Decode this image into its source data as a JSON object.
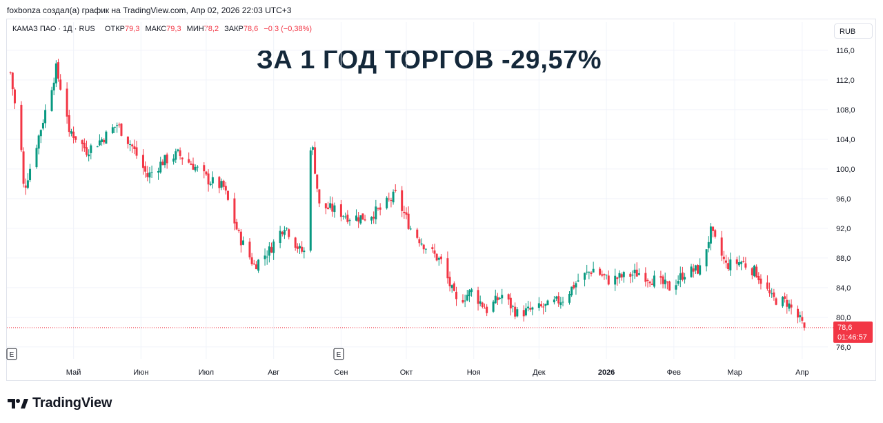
{
  "caption": "foxbonza создал(а) график на TradingView.com, Апр 02, 2026 22:03 UTC+3",
  "legend": {
    "symbol": "КАМАЗ ПАО · 1Д · RUS",
    "open_label": "ОТКР",
    "open": "79,3",
    "high_label": "МАКС",
    "high": "79,3",
    "low_label": "МИН",
    "low": "78,2",
    "close_label": "ЗАКР",
    "close": "78,6",
    "change": "−0,3 (−0,38%)"
  },
  "currency": "RUB",
  "headline": "ЗА 1 ГОД ТОРГОВ -29,57%",
  "price_badge": {
    "price": "78,6",
    "timer": "01:46:57"
  },
  "event_markers": [
    "E",
    "E"
  ],
  "brand": "TradingView",
  "colors": {
    "up": "#089981",
    "down": "#f23645",
    "grid": "#f0f3fa",
    "text": "#131722"
  },
  "chart_data": {
    "type": "candlestick",
    "title": "ЗА 1 ГОД ТОРГОВ -29,57%",
    "ylim": [
      74.4,
      117.2
    ],
    "y_ticks": [
      "116,0",
      "112,0",
      "108,0",
      "104,0",
      "100,0",
      "96,0",
      "92,0",
      "88,0",
      "84,0",
      "80,0",
      "76,0"
    ],
    "x_ticks": [
      "Май",
      "Июн",
      "Июл",
      "Авг",
      "Сен",
      "Окт",
      "Ноя",
      "Дек",
      "2026",
      "Фев",
      "Мар",
      "Апр"
    ],
    "last_price": 78.6,
    "approx_close_path": [
      {
        "date": "2025-04-02",
        "close": 113.0
      },
      {
        "date": "2025-04-09",
        "close": 98.0
      },
      {
        "date": "2025-04-16",
        "close": 105.5
      },
      {
        "date": "2025-04-23",
        "close": 113.5
      },
      {
        "date": "2025-04-30",
        "close": 105.0
      },
      {
        "date": "2025-05-07",
        "close": 102.5
      },
      {
        "date": "2025-05-14",
        "close": 104.0
      },
      {
        "date": "2025-05-21",
        "close": 106.0
      },
      {
        "date": "2025-05-28",
        "close": 103.0
      },
      {
        "date": "2025-06-04",
        "close": 99.0
      },
      {
        "date": "2025-06-11",
        "close": 101.0
      },
      {
        "date": "2025-06-18",
        "close": 102.0
      },
      {
        "date": "2025-06-25",
        "close": 100.5
      },
      {
        "date": "2025-07-02",
        "close": 98.5
      },
      {
        "date": "2025-07-09",
        "close": 97.5
      },
      {
        "date": "2025-07-16",
        "close": 91.0
      },
      {
        "date": "2025-07-23",
        "close": 87.0
      },
      {
        "date": "2025-07-30",
        "close": 89.0
      },
      {
        "date": "2025-08-06",
        "close": 92.5
      },
      {
        "date": "2025-08-13",
        "close": 89.0
      },
      {
        "date": "2025-08-18",
        "close": 88.5
      },
      {
        "date": "2025-08-19",
        "close": 102.5
      },
      {
        "date": "2025-08-22",
        "close": 95.0
      },
      {
        "date": "2025-08-29",
        "close": 94.5
      },
      {
        "date": "2025-09-05",
        "close": 93.5
      },
      {
        "date": "2025-09-12",
        "close": 93.5
      },
      {
        "date": "2025-09-19",
        "close": 94.5
      },
      {
        "date": "2025-09-26",
        "close": 96.5
      },
      {
        "date": "2025-10-03",
        "close": 92.0
      },
      {
        "date": "2025-10-10",
        "close": 89.5
      },
      {
        "date": "2025-10-17",
        "close": 87.5
      },
      {
        "date": "2025-10-24",
        "close": 82.0
      },
      {
        "date": "2025-10-31",
        "close": 83.5
      },
      {
        "date": "2025-11-07",
        "close": 81.0
      },
      {
        "date": "2025-11-14",
        "close": 83.0
      },
      {
        "date": "2025-11-21",
        "close": 80.5
      },
      {
        "date": "2025-11-28",
        "close": 81.0
      },
      {
        "date": "2025-12-05",
        "close": 81.5
      },
      {
        "date": "2025-12-12",
        "close": 82.5
      },
      {
        "date": "2025-12-19",
        "close": 85.0
      },
      {
        "date": "2025-12-26",
        "close": 86.5
      },
      {
        "date": "2026-01-02",
        "close": 85.0
      },
      {
        "date": "2026-01-09",
        "close": 85.5
      },
      {
        "date": "2026-01-16",
        "close": 86.0
      },
      {
        "date": "2026-01-23",
        "close": 85.0
      },
      {
        "date": "2026-01-30",
        "close": 84.0
      },
      {
        "date": "2026-02-06",
        "close": 86.0
      },
      {
        "date": "2026-02-13",
        "close": 86.5
      },
      {
        "date": "2026-02-18",
        "close": 91.5
      },
      {
        "date": "2026-02-25",
        "close": 87.0
      },
      {
        "date": "2026-03-04",
        "close": 87.5
      },
      {
        "date": "2026-03-11",
        "close": 86.0
      },
      {
        "date": "2026-03-18",
        "close": 82.5
      },
      {
        "date": "2026-03-25",
        "close": 82.0
      },
      {
        "date": "2026-03-30",
        "close": 80.0
      },
      {
        "date": "2026-04-02",
        "close": 78.6
      }
    ]
  }
}
